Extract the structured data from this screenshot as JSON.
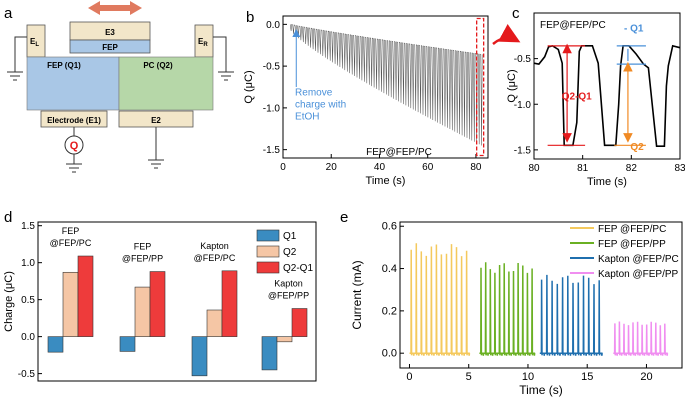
{
  "panel_letters": {
    "a": "a",
    "b": "b",
    "c": "c",
    "d": "d",
    "e": "e"
  },
  "colors": {
    "fep_blue": "#a9c7e6",
    "pc_green": "#b6d7a8",
    "electrode": "#f2e6c9",
    "arrow_red": "#e07a5f",
    "q1": "#3a8cc1",
    "q2": "#f5c6a5",
    "q2q1": "#ee3b3b",
    "cur_fep_pc": "#f4c95d",
    "cur_fep_pp": "#6ab023",
    "cur_kap_pc": "#1f6fae",
    "cur_kap_pp": "#f08ef0",
    "annot_blue": "#4a90d9",
    "annot_red": "#e41a1c",
    "annot_orange": "#f08a24"
  },
  "schematic": {
    "e3": "E3",
    "fep_top": "FEP",
    "el": "E",
    "el_sub": "L",
    "er": "E",
    "er_sub": "R",
    "fep_q1": "FEP (Q1)",
    "pc_q2": "PC (Q2)",
    "e1": "Electrode (E1)",
    "e2": "E2",
    "meter": "Q"
  },
  "chart_data": [
    {
      "panel": "b",
      "type": "line",
      "title": "FEP@FEP/PC",
      "xlabel": "Time (s)",
      "ylabel": "Q (μC)",
      "xlim": [
        0,
        85
      ],
      "ylim": [
        -1.6,
        0.1
      ],
      "xticks": [
        0,
        20,
        40,
        60,
        80
      ],
      "xtick_labels": [
        "0",
        "20",
        "40",
        "60",
        "80"
      ],
      "yticks": [
        0.0,
        -0.5,
        -1.0,
        -1.5
      ],
      "ytick_labels": [
        "0.0",
        "-0.5",
        "-1.0",
        "-1.5"
      ],
      "series": [
        {
          "name": "Q",
          "x_start": 3,
          "x_end": 82,
          "cycles": 78,
          "upper_start": 0.0,
          "upper_end": -0.36,
          "lower_start": -0.08,
          "lower_end": -1.45
        }
      ],
      "annotation": {
        "lines": [
          "Remove",
          "charge with",
          "EtOH"
        ]
      }
    },
    {
      "panel": "c",
      "type": "line",
      "title": "FEP@FEP/PC",
      "xlabel": "Time (s)",
      "ylabel": "Q (μC)",
      "xlim": [
        80,
        83
      ],
      "ylim": [
        -1.6,
        0.0
      ],
      "xticks": [
        80,
        81,
        82,
        83
      ],
      "xtick_labels": [
        "80",
        "81",
        "82",
        "83"
      ],
      "yticks": [
        -0.5,
        -1.0,
        -1.5
      ],
      "ytick_labels": [
        "-0.5",
        "-1.0",
        "-1.5"
      ],
      "levels": {
        "top1": -0.36,
        "top2": -0.56,
        "bottom": -1.45
      },
      "annotations": {
        "q1": "- Q1",
        "q2q1": "Q2-Q1",
        "q2": "Q2"
      }
    },
    {
      "panel": "d",
      "type": "bar",
      "ylabel": "Charge (μC)",
      "ylim": [
        -0.6,
        1.55
      ],
      "yticks": [
        -0.5,
        0.0,
        0.5,
        1.0,
        1.5
      ],
      "ytick_labels": [
        "-0.5",
        "0.0",
        "0.5",
        "1.0",
        "1.5"
      ],
      "categories": [
        "FEP\n@FEP/PC",
        "FEP\n@FEP/PP",
        "Kapton\n@FEP/PC",
        "Kapton\n@FEP/PP"
      ],
      "series": [
        {
          "name": "Q1",
          "values": [
            -0.21,
            -0.2,
            -0.53,
            -0.45
          ]
        },
        {
          "name": "Q2",
          "values": [
            0.87,
            0.67,
            0.36,
            -0.07
          ]
        },
        {
          "name": "Q2-Q1",
          "values": [
            1.09,
            0.88,
            0.89,
            0.38
          ]
        }
      ]
    },
    {
      "panel": "e",
      "type": "line",
      "xlabel": "Time (s)",
      "ylabel": "Current (mA)",
      "xlim": [
        -0.8,
        23
      ],
      "ylim": [
        -0.07,
        0.62
      ],
      "xticks": [
        0,
        5,
        10,
        15,
        20
      ],
      "xtick_labels": [
        "0",
        "5",
        "10",
        "15",
        "20"
      ],
      "yticks": [
        0.0,
        0.2,
        0.4,
        0.6
      ],
      "ytick_labels": [
        "0.0",
        "0.2",
        "0.4",
        "0.6"
      ],
      "series": [
        {
          "name": "FEP @FEP/PC",
          "t_start": 0.0,
          "t_end": 5.1,
          "peak": 0.52,
          "pulses": 12
        },
        {
          "name": "FEP @FEP/PP",
          "t_start": 5.9,
          "t_end": 10.6,
          "peak": 0.43,
          "pulses": 12
        },
        {
          "name": "Kapton @FEP/PC",
          "t_start": 11.0,
          "t_end": 16.3,
          "peak": 0.37,
          "pulses": 12
        },
        {
          "name": "Kapton @FEP/PP",
          "t_start": 17.2,
          "t_end": 21.8,
          "peak": 0.15,
          "pulses": 12
        }
      ]
    }
  ]
}
